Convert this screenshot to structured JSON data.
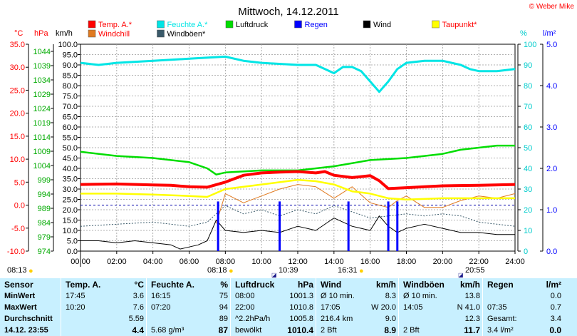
{
  "title": "Mittwoch, 14.12.2011",
  "credit": "© Weber Mike",
  "colors": {
    "temp": "#ff0000",
    "humidity": "#00e5e5",
    "pressure": "#00dd00",
    "rain": "#0000ff",
    "wind": "#000000",
    "dewpoint": "#ffff00",
    "windchill": "#e07a20",
    "gusts": "#3a5a6a",
    "grid": "#999999",
    "bg": "#ffffff",
    "statsbg": "#c8f0ff"
  },
  "axis_units": {
    "temp": "°C",
    "pressure": "hPa",
    "wind": "km/h",
    "humidity": "%",
    "rain": "l/m²"
  },
  "legend": [
    {
      "label": "Temp. A.*",
      "color": "#ff0000",
      "text_color": "#ff0000"
    },
    {
      "label": "Feuchte A.*",
      "color": "#00e5e5",
      "text_color": "#00e5e5"
    },
    {
      "label": "Luftdruck",
      "color": "#00dd00",
      "text_color": "#000000"
    },
    {
      "label": "Regen",
      "color": "#0000ff",
      "text_color": "#0000ff"
    },
    {
      "label": "Wind",
      "color": "#000000",
      "text_color": "#000000"
    },
    {
      "label": "Taupunkt*",
      "color": "#ffff00",
      "text_color": "#ff0000"
    },
    {
      "label": "Windchill",
      "color": "#e07a20",
      "text_color": "#ff0000"
    },
    {
      "label": "Windböen*",
      "color": "#3a5a6a",
      "text_color": "#000000"
    }
  ],
  "sun_times": {
    "rise_civil": "08:13",
    "rise": "08:18",
    "moonrise": "10:39",
    "moonset": "16:31",
    "sunset": "20:55"
  },
  "chart_data": {
    "type": "line",
    "x_ticks": [
      "00:00",
      "02:00",
      "04:00",
      "06:00",
      "08:00",
      "10:00",
      "12:00",
      "14:00",
      "16:00",
      "18:00",
      "20:00",
      "22:00",
      "24:00"
    ],
    "xlim": [
      0,
      24
    ],
    "axes": {
      "temp_ticks": [
        "35.0",
        "30.0",
        "25.0",
        "20.0",
        "15.0",
        "10.0",
        "5.0",
        "0.0",
        "-5.0",
        "-10.0"
      ],
      "pressure_ticks": [
        "1044",
        "1039",
        "1034",
        "1029",
        "1024",
        "1019",
        "1014",
        "1009",
        "1004",
        "999",
        "994",
        "989",
        "984",
        "979",
        "974"
      ],
      "wind_ticks": [
        "100.0",
        "95.0",
        "90.0",
        "85.0",
        "80.0",
        "75.0",
        "70.0",
        "65.0",
        "60.0",
        "55.0",
        "50.0",
        "45.0",
        "40.0",
        "35.0",
        "30.0",
        "25.0",
        "20.0",
        "15.0",
        "10.0",
        "5.0",
        "0.0"
      ],
      "humidity_ticks": [
        "100",
        "90",
        "80",
        "70",
        "60",
        "50",
        "40",
        "30",
        "20",
        "10",
        "0"
      ],
      "rain_ticks": [
        "5.0",
        "4.0",
        "3.0",
        "2.0",
        "1.0",
        "0.0"
      ],
      "temp_ylim": [
        -10,
        35
      ],
      "wind_ylim": [
        0,
        100
      ],
      "humidity_ylim": [
        0,
        100
      ],
      "rain_ylim": [
        0,
        5
      ],
      "pressure_ylim": [
        974,
        1044
      ]
    },
    "series": [
      {
        "name": "Temp. A.*",
        "axis": "temp",
        "x": [
          0,
          2,
          4,
          5,
          6,
          7,
          8,
          9,
          10,
          11,
          12,
          13,
          13.5,
          14,
          15,
          15.5,
          16,
          16.5,
          17,
          18,
          19,
          20,
          22,
          24
        ],
        "y": [
          4.5,
          4.6,
          4.4,
          4.3,
          4.0,
          3.9,
          5.0,
          6.5,
          7.0,
          7.2,
          7.3,
          7.0,
          7.3,
          6.5,
          6.0,
          6.2,
          6.4,
          5.3,
          3.6,
          3.8,
          4.0,
          4.2,
          4.3,
          4.5
        ]
      },
      {
        "name": "Feuchte A.*",
        "axis": "humidity",
        "x": [
          0,
          1,
          2,
          4,
          6,
          8,
          9,
          10,
          12,
          13,
          13.5,
          14,
          14.5,
          15,
          15.5,
          16,
          16.5,
          17,
          17.5,
          18,
          19,
          20,
          21,
          21.5,
          22,
          23,
          24
        ],
        "y": [
          91,
          90,
          91,
          92,
          93,
          94,
          92,
          91,
          90,
          90,
          88,
          86,
          89,
          89,
          87,
          82,
          77,
          82,
          88,
          91,
          92,
          92,
          90,
          88,
          87,
          87,
          88
        ]
      },
      {
        "name": "Luftdruck",
        "axis": "wind",
        "x": [
          0,
          2,
          4,
          6,
          7,
          7.5,
          8,
          10,
          12,
          14,
          16,
          18,
          19,
          20,
          21,
          22,
          23,
          24
        ],
        "y": [
          48,
          46,
          45,
          43,
          40,
          37,
          38,
          39,
          39,
          41,
          44,
          45,
          46,
          47,
          49,
          50,
          51,
          51
        ]
      },
      {
        "name": "Taupunkt*",
        "axis": "temp",
        "x": [
          0,
          2,
          4,
          6,
          7,
          8,
          10,
          12,
          13,
          14,
          15,
          16,
          17,
          18,
          20,
          22,
          24
        ],
        "y": [
          2.5,
          2.5,
          2.3,
          2.0,
          1.8,
          3.5,
          4.5,
          5.5,
          5.2,
          4.5,
          3.0,
          2.5,
          1.5,
          1.2,
          1.5,
          1.5,
          1.5
        ]
      },
      {
        "name": "Windchill",
        "axis": "temp",
        "x": [
          0,
          7.2,
          7.5,
          8,
          9,
          10,
          11,
          12,
          13,
          14,
          15,
          16,
          16.5,
          17,
          17.5,
          18,
          19,
          20,
          21,
          22,
          23,
          24
        ],
        "y": [
          null,
          null,
          -4.0,
          2.5,
          0.5,
          2.0,
          3.5,
          4.5,
          4.0,
          1.5,
          4.0,
          0.5,
          0.0,
          -0.5,
          1.0,
          2.0,
          -0.5,
          -0.5,
          1.0,
          2.0,
          1.5,
          2.5
        ]
      },
      {
        "name": "Wind",
        "axis": "wind",
        "x": [
          0,
          1,
          2,
          3,
          4,
          5,
          5.5,
          6,
          6.5,
          7,
          7.5,
          8,
          9,
          10,
          11,
          12,
          13,
          14,
          15,
          16,
          16.5,
          17,
          17.5,
          18,
          19,
          20,
          21,
          22,
          23,
          24
        ],
        "y": [
          5,
          5,
          4,
          5,
          4,
          3,
          1,
          2,
          3,
          5,
          15,
          10,
          9,
          10,
          9,
          12,
          10,
          16,
          12,
          10,
          17,
          12,
          9,
          11,
          13,
          11,
          9,
          9,
          8,
          8
        ]
      },
      {
        "name": "Windböen*",
        "axis": "wind",
        "x": [
          0,
          2,
          4,
          6,
          7,
          7.5,
          8,
          9,
          10,
          11,
          12,
          13,
          14,
          15,
          16,
          17,
          18,
          19,
          20,
          21,
          22,
          23,
          24
        ],
        "y": [
          12,
          13,
          14,
          12,
          14,
          18,
          22,
          18,
          20,
          17,
          20,
          18,
          22,
          19,
          16,
          17,
          18,
          17,
          18,
          17,
          14,
          13,
          12
        ]
      },
      {
        "name": "Regen",
        "axis": "rain",
        "type": "bar",
        "x": [
          7.6,
          11.0,
          14.8,
          17.0,
          17.5
        ],
        "y": [
          1.2,
          1.2,
          1.2,
          1.2,
          1.2
        ]
      }
    ]
  },
  "stats": {
    "row_labels": [
      "Sensor",
      "MinWert",
      "MaxWert",
      "Durchschnitt",
      "14.12. 23:55"
    ],
    "columns": [
      {
        "header": "Temp. A.",
        "unit": "°C",
        "rows": [
          [
            "17:45",
            "3.6"
          ],
          [
            "10:20",
            "7.6"
          ],
          [
            "",
            "5.59"
          ],
          [
            "",
            "4.4"
          ]
        ]
      },
      {
        "header": "Feuchte A.",
        "unit": "%",
        "rows": [
          [
            "16:15",
            "75"
          ],
          [
            "07:20",
            "94"
          ],
          [
            "",
            "89"
          ],
          [
            "5.68 g/m³",
            "87"
          ]
        ]
      },
      {
        "header": "Luftdruck",
        "unit": "hPa",
        "rows": [
          [
            "08:00",
            "1001.3"
          ],
          [
            "22:00",
            "1010.8"
          ],
          [
            "^2.2hPa/h",
            "1005.8"
          ],
          [
            "bewölkt",
            "1010.4"
          ]
        ]
      },
      {
        "header": "Wind",
        "unit": "km/h",
        "rows": [
          [
            "Ø 10 min.",
            "8.3"
          ],
          [
            "17:05",
            "W 20.0"
          ],
          [
            "216.4 km",
            "9.0"
          ],
          [
            "2 Bft",
            "8.9"
          ]
        ]
      },
      {
        "header": "Windböen",
        "unit": "km/h",
        "rows": [
          [
            "Ø 10 min.",
            "13.8"
          ],
          [
            "14:05",
            "N 41.0"
          ],
          [
            "",
            "12.3"
          ],
          [
            "2 Bft",
            "11.7"
          ]
        ]
      },
      {
        "header": "Regen",
        "unit": "l/m²",
        "rows": [
          [
            "",
            "0.0"
          ],
          [
            "07:35",
            "0.7"
          ],
          [
            "Gesamt:",
            "3.4"
          ],
          [
            "3.4 l/m²",
            "0.0"
          ]
        ]
      }
    ]
  }
}
